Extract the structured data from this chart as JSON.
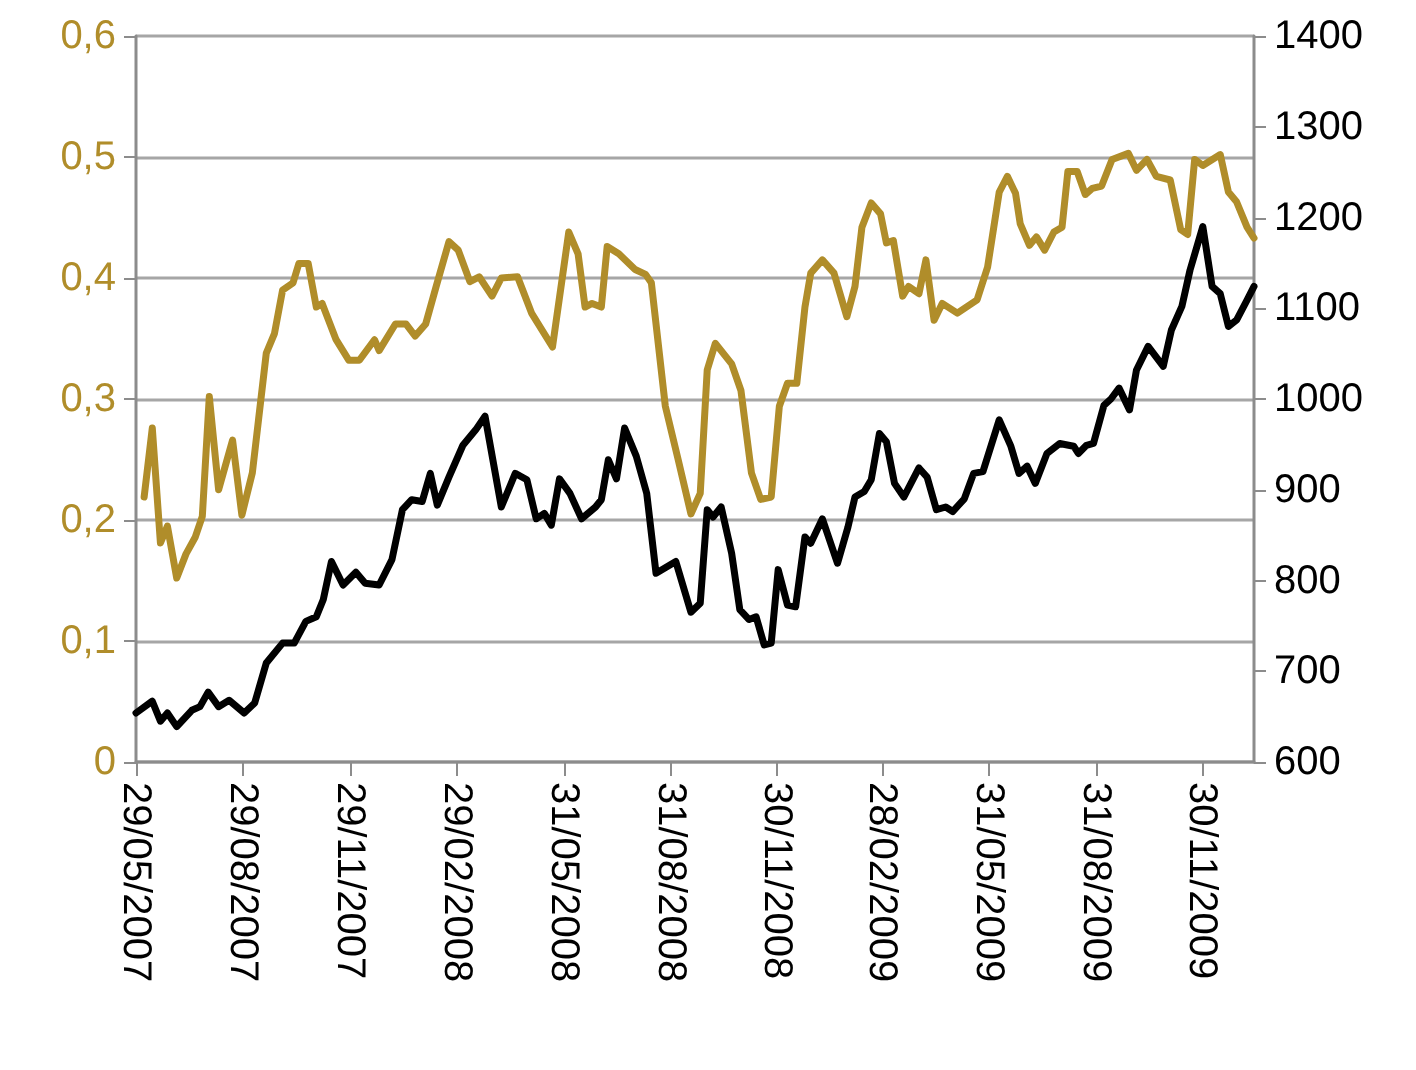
{
  "chart_data": {
    "type": "line",
    "marker": "none",
    "line_style": "solid",
    "grid": "y",
    "legend": false,
    "xlim": [
      "2007-05-29",
      "2010-01-14"
    ],
    "xticks": [
      {
        "value": "2007-05-29",
        "label": "29/05/2007"
      },
      {
        "value": "2007-08-29",
        "label": "29/08/2007"
      },
      {
        "value": "2007-11-29",
        "label": "29/11/2007"
      },
      {
        "value": "2008-02-29",
        "label": "29/02/2008"
      },
      {
        "value": "2008-05-31",
        "label": "31/05/2008"
      },
      {
        "value": "2008-08-31",
        "label": "31/08/2008"
      },
      {
        "value": "2008-11-30",
        "label": "30/11/2008"
      },
      {
        "value": "2009-02-28",
        "label": "28/02/2009"
      },
      {
        "value": "2009-05-31",
        "label": "31/05/2009"
      },
      {
        "value": "2009-08-31",
        "label": "31/08/2009"
      },
      {
        "value": "2009-11-30",
        "label": "30/11/2009"
      }
    ],
    "ylim": [
      0,
      0.6
    ],
    "yticks": [
      0,
      {
        "value": 0.1,
        "label": "0,1"
      },
      {
        "value": 0.2,
        "label": "0,2"
      },
      {
        "value": 0.3,
        "label": "0,3"
      },
      {
        "value": 0.4,
        "label": "0,4"
      },
      {
        "value": 0.5,
        "label": "0,5"
      },
      {
        "value": 0.6,
        "label": "0,6"
      }
    ],
    "y2lim": [
      600,
      1400
    ],
    "y2ticks": [
      600,
      700,
      800,
      900,
      1000,
      1100,
      1200,
      1300,
      1400
    ],
    "series": [
      {
        "color": "#b08d2a",
        "axis": "y",
        "x": [
          "2007-06-05",
          "2007-06-12",
          "2007-06-19",
          "2007-06-25",
          "2007-07-03",
          "2007-07-11",
          "2007-07-19",
          "2007-07-25",
          "2007-07-31",
          "2007-08-08",
          "2007-08-20",
          "2007-08-28",
          "2007-09-06",
          "2007-09-18",
          "2007-09-25",
          "2007-10-02",
          "2007-10-11",
          "2007-10-16",
          "2007-10-24",
          "2007-10-31",
          "2007-11-05",
          "2007-11-17",
          "2007-11-28",
          "2007-12-07",
          "2007-12-20",
          "2007-12-24",
          "2008-01-07",
          "2008-01-16",
          "2008-01-24",
          "2008-02-02",
          "2008-02-11",
          "2008-02-22",
          "2008-03-01",
          "2008-03-11",
          "2008-03-19",
          "2008-03-30",
          "2008-04-07",
          "2008-04-21",
          "2008-05-03",
          "2008-05-21",
          "2008-06-04",
          "2008-06-12",
          "2008-06-18",
          "2008-06-24",
          "2008-07-02",
          "2008-07-07",
          "2008-07-17",
          "2008-07-31",
          "2008-08-09",
          "2008-08-14",
          "2008-08-26",
          "2008-09-06",
          "2008-09-17",
          "2008-09-25",
          "2008-10-01",
          "2008-10-08",
          "2008-10-22",
          "2008-10-30",
          "2008-11-08",
          "2008-11-16",
          "2008-11-25",
          "2008-12-02",
          "2008-12-09",
          "2008-12-17",
          "2008-12-24",
          "2008-12-29",
          "2009-01-08",
          "2009-01-18",
          "2009-01-29",
          "2009-02-05",
          "2009-02-11",
          "2009-02-19",
          "2009-02-27",
          "2009-03-04",
          "2009-03-10",
          "2009-03-18",
          "2009-03-23",
          "2009-04-01",
          "2009-04-07",
          "2009-04-14",
          "2009-04-21",
          "2009-05-04",
          "2009-05-21",
          "2009-05-30",
          "2009-06-09",
          "2009-06-16",
          "2009-06-23",
          "2009-06-27",
          "2009-07-05",
          "2009-07-11",
          "2009-07-18",
          "2009-07-26",
          "2009-08-02",
          "2009-08-07",
          "2009-08-15",
          "2009-08-22",
          "2009-08-28",
          "2009-09-05",
          "2009-09-14",
          "2009-09-28",
          "2009-10-05",
          "2009-10-14",
          "2009-10-22",
          "2009-11-03",
          "2009-11-12",
          "2009-11-18",
          "2009-11-24",
          "2009-12-01",
          "2009-12-16",
          "2009-12-23",
          "2009-12-30",
          "2010-01-08",
          "2010-01-14"
        ],
        "values": [
          0.219,
          0.276,
          0.181,
          0.195,
          0.152,
          0.172,
          0.186,
          0.203,
          0.302,
          0.225,
          0.266,
          0.204,
          0.239,
          0.338,
          0.354,
          0.39,
          0.396,
          0.412,
          0.412,
          0.376,
          0.379,
          0.349,
          0.332,
          0.332,
          0.349,
          0.34,
          0.362,
          0.362,
          0.352,
          0.362,
          0.393,
          0.43,
          0.423,
          0.397,
          0.401,
          0.385,
          0.4,
          0.401,
          0.371,
          0.343,
          0.438,
          0.42,
          0.376,
          0.379,
          0.376,
          0.426,
          0.42,
          0.407,
          0.403,
          0.396,
          0.294,
          0.25,
          0.205,
          0.222,
          0.324,
          0.346,
          0.329,
          0.307,
          0.239,
          0.217,
          0.219,
          0.294,
          0.313,
          0.313,
          0.376,
          0.404,
          0.415,
          0.404,
          0.368,
          0.393,
          0.442,
          0.462,
          0.453,
          0.429,
          0.431,
          0.385,
          0.393,
          0.387,
          0.415,
          0.365,
          0.379,
          0.371,
          0.382,
          0.409,
          0.471,
          0.484,
          0.47,
          0.445,
          0.427,
          0.434,
          0.423,
          0.438,
          0.442,
          0.488,
          0.488,
          0.469,
          0.474,
          0.476,
          0.498,
          0.503,
          0.489,
          0.498,
          0.484,
          0.481,
          0.44,
          0.436,
          0.498,
          0.493,
          0.502,
          0.471,
          0.463,
          0.442,
          0.433
        ]
      },
      {
        "color": "#000000",
        "axis": "y2",
        "x": [
          "2007-05-29",
          "2007-06-12",
          "2007-06-19",
          "2007-06-25",
          "2007-07-03",
          "2007-07-16",
          "2007-07-23",
          "2007-07-30",
          "2007-08-08",
          "2007-08-17",
          "2007-08-30",
          "2007-09-08",
          "2007-09-18",
          "2007-10-02",
          "2007-10-12",
          "2007-10-22",
          "2007-10-31",
          "2007-11-06",
          "2007-11-13",
          "2007-11-23",
          "2007-12-04",
          "2007-12-12",
          "2007-12-24",
          "2008-01-04",
          "2008-01-13",
          "2008-01-21",
          "2008-01-30",
          "2008-02-06",
          "2008-02-12",
          "2008-02-22",
          "2008-03-05",
          "2008-03-16",
          "2008-03-24",
          "2008-04-07",
          "2008-04-19",
          "2008-04-29",
          "2008-05-07",
          "2008-05-14",
          "2008-05-20",
          "2008-05-27",
          "2008-06-05",
          "2008-06-15",
          "2008-06-27",
          "2008-07-02",
          "2008-07-08",
          "2008-07-15",
          "2008-07-22",
          "2008-08-01",
          "2008-08-10",
          "2008-08-18",
          "2008-09-04",
          "2008-09-17",
          "2008-09-25",
          "2008-10-01",
          "2008-10-06",
          "2008-10-13",
          "2008-10-22",
          "2008-10-29",
          "2008-11-06",
          "2008-11-12",
          "2008-11-19",
          "2008-11-25",
          "2008-12-01",
          "2008-12-09",
          "2008-12-16",
          "2008-12-24",
          "2008-12-29",
          "2009-01-08",
          "2009-01-21",
          "2009-01-30",
          "2009-02-05",
          "2009-02-13",
          "2009-02-19",
          "2009-02-26",
          "2009-03-04",
          "2009-03-11",
          "2009-03-19",
          "2009-04-01",
          "2009-04-08",
          "2009-04-16",
          "2009-04-24",
          "2009-04-30",
          "2009-05-10",
          "2009-05-18",
          "2009-05-26",
          "2009-06-09",
          "2009-06-19",
          "2009-06-26",
          "2009-07-03",
          "2009-07-10",
          "2009-07-20",
          "2009-07-31",
          "2009-08-12",
          "2009-08-16",
          "2009-08-23",
          "2009-08-29",
          "2009-09-07",
          "2009-09-13",
          "2009-09-20",
          "2009-09-29",
          "2009-10-05",
          "2009-10-15",
          "2009-10-28",
          "2009-11-04",
          "2009-11-13",
          "2009-11-20",
          "2009-12-01",
          "2009-12-09",
          "2009-12-16",
          "2009-12-23",
          "2009-12-30",
          "2010-01-08",
          "2010-01-14"
        ],
        "values": [
          654,
          667,
          645,
          654,
          639,
          657,
          661,
          677,
          661,
          668,
          654,
          665,
          709,
          731,
          731,
          755,
          760,
          779,
          821,
          795,
          809,
          797,
          795,
          823,
          878,
          889,
          887,
          918,
          883,
          914,
          949,
          966,
          981,
          881,
          918,
          911,
          868,
          874,
          861,
          912,
          896,
          868,
          881,
          889,
          933,
          912,
          968,
          937,
          896,
          808,
          821,
          765,
          775,
          878,
          870,
          881,
          830,
          768,
          757,
          760,
          729,
          731,
          812,
          773,
          771,
          848,
          841,
          868,
          819,
          859,
          892,
          898,
          911,
          962,
          953,
          907,
          892,
          924,
          914,
          878,
          881,
          876,
          890,
          918,
          920,
          977,
          948,
          918,
          926,
          907,
          940,
          951,
          948,
          940,
          949,
          951,
          993,
          1000,
          1012,
          988,
          1032,
          1058,
          1036,
          1076,
          1102,
          1142,
          1190,
          1124,
          1116,
          1080,
          1087,
          1109,
          1124
        ]
      }
    ]
  }
}
